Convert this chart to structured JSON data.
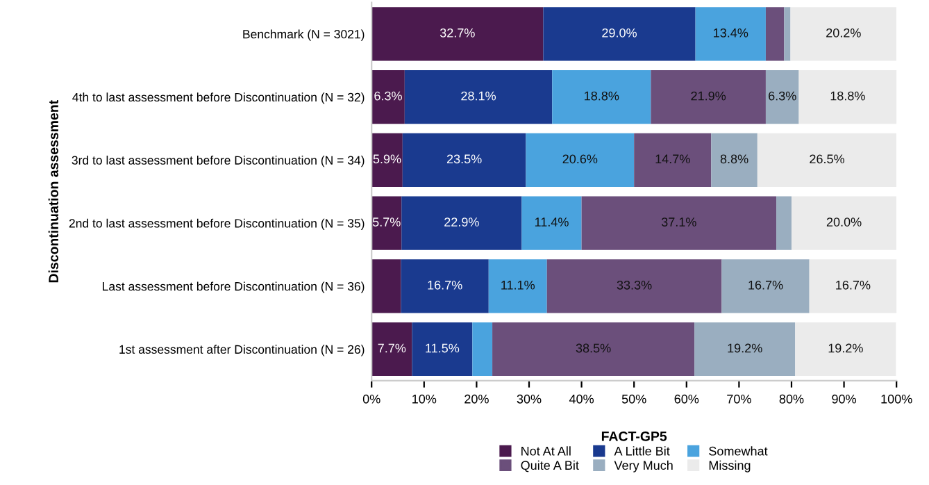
{
  "chart_data": {
    "type": "bar",
    "orientation": "horizontal",
    "stacked": true,
    "ylabel": "Discontinuation assessment",
    "legend_title": "FACT-GP5",
    "legend": "bottom",
    "categories": [
      "Benchmark (N = 3021)",
      "4th to last assessment before Discontinuation (N = 32)",
      "3rd to last assessment before Discontinuation (N = 34)",
      "2nd to last assessment before Discontinuation (N = 35)",
      "Last assessment before Discontinuation (N = 36)",
      "1st assessment after Discontinuation (N = 26)"
    ],
    "xlim": [
      0,
      100
    ],
    "xticks": [
      {
        "value": 0,
        "label": "0%"
      },
      {
        "value": 10,
        "label": "10%"
      },
      {
        "value": 20,
        "label": "20%"
      },
      {
        "value": 30,
        "label": "30%"
      },
      {
        "value": 40,
        "label": "40%"
      },
      {
        "value": 50,
        "label": "50%"
      },
      {
        "value": 60,
        "label": "60%"
      },
      {
        "value": 70,
        "label": "70%"
      },
      {
        "value": 80,
        "label": "80%"
      },
      {
        "value": 90,
        "label": "90%"
      },
      {
        "value": 100,
        "label": "100%"
      }
    ],
    "series": [
      {
        "name": "Not At All",
        "color": "#4b1a4e",
        "values": [
          32.7,
          6.3,
          5.9,
          5.7,
          5.6,
          7.7
        ],
        "value_labels": [
          "32.7%",
          "6.3%",
          "5.9%",
          "5.7%",
          null,
          "7.7%"
        ]
      },
      {
        "name": "A Little Bit",
        "color": "#1a3a8f",
        "values": [
          29.0,
          28.1,
          23.5,
          22.9,
          16.7,
          11.5
        ],
        "value_labels": [
          "29.0%",
          "28.1%",
          "23.5%",
          "22.9%",
          "16.7%",
          "11.5%"
        ]
      },
      {
        "name": "Somewhat",
        "color": "#4aa3de",
        "values": [
          13.4,
          18.8,
          20.6,
          11.4,
          11.1,
          3.8
        ],
        "value_labels": [
          "13.4%",
          "18.8%",
          "20.6%",
          "11.4%",
          "11.1%",
          null
        ]
      },
      {
        "name": "Quite A Bit",
        "color": "#6b4f7b",
        "values": [
          3.5,
          21.9,
          14.7,
          37.1,
          33.3,
          38.5
        ],
        "value_labels": [
          null,
          "21.9%",
          "14.7%",
          "37.1%",
          "33.3%",
          "38.5%"
        ]
      },
      {
        "name": "Very Much",
        "color": "#9aaec0",
        "values": [
          1.2,
          6.3,
          8.8,
          2.9,
          16.7,
          19.2
        ],
        "value_labels": [
          null,
          "6.3%",
          "8.8%",
          null,
          "16.7%",
          "19.2%"
        ]
      },
      {
        "name": "Missing",
        "color": "#ebebeb",
        "values": [
          20.2,
          18.8,
          26.5,
          20.0,
          16.7,
          19.2
        ],
        "value_labels": [
          "20.2%",
          "18.8%",
          "26.5%",
          "20.0%",
          "16.7%",
          "19.2%"
        ]
      }
    ]
  }
}
